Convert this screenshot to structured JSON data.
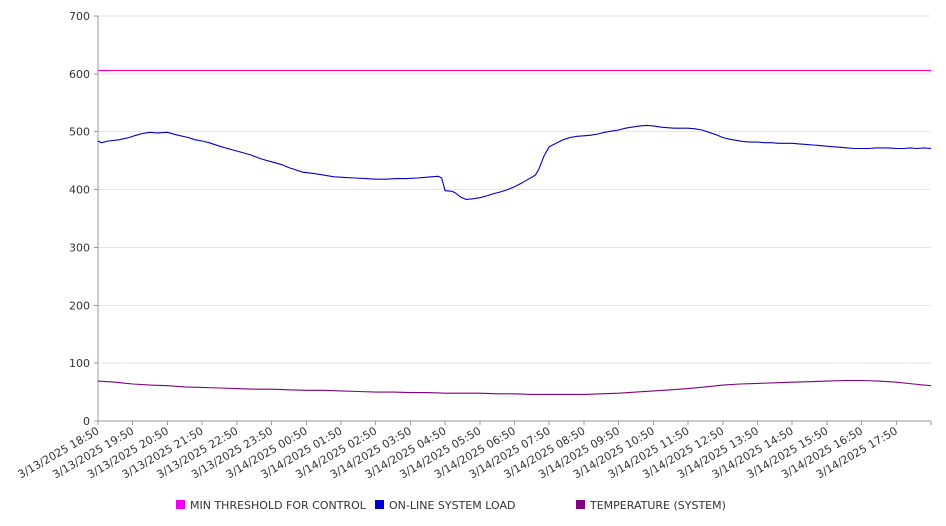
{
  "chart_data": {
    "type": "line",
    "title": "",
    "xlabel": "",
    "ylabel": "",
    "ylim": [
      0,
      700
    ],
    "yticks": [
      0,
      100,
      200,
      300,
      400,
      500,
      600,
      700
    ],
    "x_tick_labels": [
      "3/13/2025 18:50",
      "3/13/2025 19:50",
      "3/13/2025 20:50",
      "3/13/2025 21:50",
      "3/13/2025 22:50",
      "3/13/2025 23:50",
      "3/14/2025 00:50",
      "3/14/2025 01:50",
      "3/14/2025 02:50",
      "3/14/2025 03:50",
      "3/14/2025 04:50",
      "3/14/2025 05:50",
      "3/14/2025 06:50",
      "3/14/2025 07:50",
      "3/14/2025 08:50",
      "3/14/2025 09:50",
      "3/14/2025 10:50",
      "3/14/2025 11:50",
      "3/14/2025 12:50",
      "3/14/2025 13:50",
      "3/14/2025 14:50",
      "3/14/2025 15:50",
      "3/14/2025 16:50",
      "3/14/2025 17:50"
    ],
    "x_range_hours": [
      0,
      24
    ],
    "grid": "horizontal",
    "legend_position": "bottom",
    "series": [
      {
        "name": "MIN THRESHOLD FOR CONTROL",
        "color": "#ee00ee",
        "points": [
          [
            0,
            606
          ],
          [
            24,
            606
          ]
        ]
      },
      {
        "name": "ON-LINE SYSTEM LOAD",
        "color": "#0000cc",
        "points": [
          [
            0,
            484
          ],
          [
            0.1,
            481
          ],
          [
            0.3,
            484
          ],
          [
            0.6,
            486
          ],
          [
            0.9,
            490
          ],
          [
            1.1,
            494
          ],
          [
            1.3,
            497
          ],
          [
            1.5,
            499
          ],
          [
            1.7,
            498
          ],
          [
            2.0,
            499
          ],
          [
            2.3,
            494
          ],
          [
            2.6,
            490
          ],
          [
            2.8,
            486
          ],
          [
            3.0,
            484
          ],
          [
            3.2,
            481
          ],
          [
            3.5,
            475
          ],
          [
            3.8,
            470
          ],
          [
            4.1,
            465
          ],
          [
            4.4,
            460
          ],
          [
            4.7,
            453
          ],
          [
            5.0,
            448
          ],
          [
            5.3,
            443
          ],
          [
            5.5,
            438
          ],
          [
            5.7,
            434
          ],
          [
            5.9,
            430
          ],
          [
            6.2,
            428
          ],
          [
            6.5,
            425
          ],
          [
            6.8,
            422
          ],
          [
            7.1,
            421
          ],
          [
            7.4,
            420
          ],
          [
            7.7,
            419
          ],
          [
            8.0,
            418
          ],
          [
            8.3,
            418
          ],
          [
            8.6,
            419
          ],
          [
            8.9,
            419
          ],
          [
            9.2,
            420
          ],
          [
            9.4,
            421
          ],
          [
            9.6,
            422
          ],
          [
            9.8,
            423
          ],
          [
            9.9,
            420
          ],
          [
            10.0,
            398
          ],
          [
            10.2,
            397
          ],
          [
            10.3,
            394
          ],
          [
            10.45,
            387
          ],
          [
            10.6,
            383
          ],
          [
            10.8,
            384
          ],
          [
            11.0,
            386
          ],
          [
            11.2,
            389
          ],
          [
            11.4,
            393
          ],
          [
            11.6,
            396
          ],
          [
            11.8,
            400
          ],
          [
            12.0,
            405
          ],
          [
            12.2,
            411
          ],
          [
            12.4,
            418
          ],
          [
            12.6,
            425
          ],
          [
            12.7,
            435
          ],
          [
            12.85,
            458
          ],
          [
            13.0,
            474
          ],
          [
            13.2,
            480
          ],
          [
            13.4,
            486
          ],
          [
            13.6,
            490
          ],
          [
            13.8,
            492
          ],
          [
            14.0,
            493
          ],
          [
            14.2,
            494
          ],
          [
            14.4,
            496
          ],
          [
            14.6,
            499
          ],
          [
            14.8,
            501
          ],
          [
            15.0,
            503
          ],
          [
            15.2,
            506
          ],
          [
            15.4,
            508
          ],
          [
            15.6,
            510
          ],
          [
            15.8,
            511
          ],
          [
            16.0,
            510
          ],
          [
            16.2,
            508
          ],
          [
            16.4,
            507
          ],
          [
            16.6,
            506
          ],
          [
            16.8,
            506
          ],
          [
            17.0,
            506
          ],
          [
            17.2,
            505
          ],
          [
            17.4,
            503
          ],
          [
            17.6,
            499
          ],
          [
            17.8,
            495
          ],
          [
            18.0,
            490
          ],
          [
            18.2,
            487
          ],
          [
            18.4,
            485
          ],
          [
            18.6,
            483
          ],
          [
            18.8,
            482
          ],
          [
            19.0,
            482
          ],
          [
            19.2,
            481
          ],
          [
            19.4,
            481
          ],
          [
            19.6,
            480
          ],
          [
            19.8,
            480
          ],
          [
            20.0,
            480
          ],
          [
            20.2,
            479
          ],
          [
            20.4,
            478
          ],
          [
            20.6,
            477
          ],
          [
            20.8,
            476
          ],
          [
            21.0,
            475
          ],
          [
            21.2,
            474
          ],
          [
            21.4,
            473
          ],
          [
            21.6,
            472
          ],
          [
            21.8,
            471
          ],
          [
            22.0,
            471
          ],
          [
            22.2,
            471
          ],
          [
            22.4,
            472
          ],
          [
            22.6,
            472
          ],
          [
            22.8,
            472
          ],
          [
            23.0,
            471
          ],
          [
            23.2,
            471
          ],
          [
            23.4,
            472
          ],
          [
            23.6,
            471
          ],
          [
            23.8,
            472
          ],
          [
            24.0,
            471
          ]
        ]
      },
      {
        "name": "TEMPERATURE (SYSTEM)",
        "color": "#800080",
        "points": [
          [
            0,
            69
          ],
          [
            0.5,
            67
          ],
          [
            1.0,
            64
          ],
          [
            1.5,
            62
          ],
          [
            2.0,
            61
          ],
          [
            2.5,
            59
          ],
          [
            3.0,
            58
          ],
          [
            3.5,
            57
          ],
          [
            4.0,
            56
          ],
          [
            4.5,
            55
          ],
          [
            5.0,
            55
          ],
          [
            5.5,
            54
          ],
          [
            6.0,
            53
          ],
          [
            6.5,
            53
          ],
          [
            7.0,
            52
          ],
          [
            7.5,
            51
          ],
          [
            8.0,
            50
          ],
          [
            8.5,
            50
          ],
          [
            9.0,
            49
          ],
          [
            9.5,
            49
          ],
          [
            10.0,
            48
          ],
          [
            10.5,
            48
          ],
          [
            11.0,
            48
          ],
          [
            11.5,
            47
          ],
          [
            12.0,
            47
          ],
          [
            12.5,
            46
          ],
          [
            13.0,
            46
          ],
          [
            13.5,
            46
          ],
          [
            14.0,
            46
          ],
          [
            14.5,
            47
          ],
          [
            15.0,
            48
          ],
          [
            15.5,
            50
          ],
          [
            16.0,
            52
          ],
          [
            16.5,
            54
          ],
          [
            17.0,
            56
          ],
          [
            17.5,
            59
          ],
          [
            18.0,
            62
          ],
          [
            18.5,
            64
          ],
          [
            19.0,
            65
          ],
          [
            19.5,
            66
          ],
          [
            20.0,
            67
          ],
          [
            20.5,
            68
          ],
          [
            21.0,
            69
          ],
          [
            21.5,
            70
          ],
          [
            22.0,
            70
          ],
          [
            22.5,
            69
          ],
          [
            23.0,
            67
          ],
          [
            23.5,
            64
          ],
          [
            24.0,
            61
          ]
        ]
      }
    ]
  }
}
